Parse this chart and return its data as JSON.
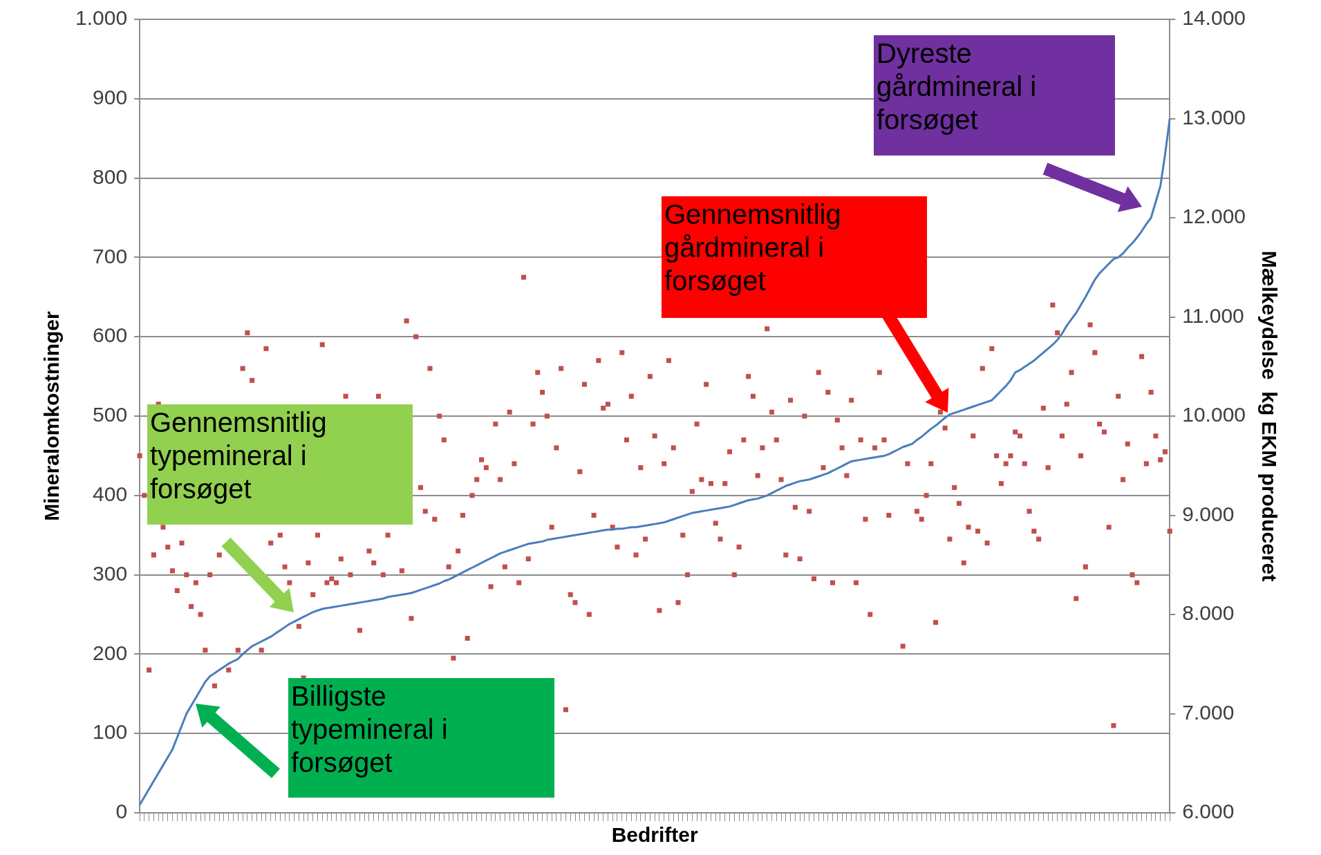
{
  "chart_data": {
    "type": "line",
    "xlabel": "Bedrifter",
    "ylabel": "Mineralomkostninger",
    "y2label": "Mælkeydelse  kg EKM produceret",
    "categories": [
      null,
      null,
      null,
      null,
      null,
      null,
      null,
      null,
      null,
      null,
      null,
      null,
      null,
      null,
      null,
      null,
      null,
      null,
      null,
      null,
      null,
      null,
      null,
      null,
      null,
      null,
      null,
      null,
      null,
      null,
      null,
      null,
      null,
      null,
      null,
      null,
      null,
      null,
      null,
      null,
      null,
      null,
      null,
      null,
      null,
      null,
      null,
      null,
      null,
      null,
      null,
      null,
      null,
      null,
      null,
      null,
      null,
      null,
      null,
      null,
      null,
      null,
      null,
      null,
      null,
      null,
      null,
      null,
      null,
      null,
      null,
      null,
      null,
      null,
      null,
      null,
      null,
      null,
      null,
      null,
      null,
      null,
      null,
      null,
      null,
      null,
      null,
      null,
      null,
      null,
      null,
      null,
      null,
      null,
      null,
      null,
      null,
      null,
      null,
      null,
      null,
      null,
      null,
      null,
      null,
      null,
      null,
      null,
      null,
      null,
      null,
      null,
      null,
      null,
      null,
      null,
      null,
      null,
      null,
      null,
      null,
      null,
      null,
      null,
      null,
      null,
      null,
      null,
      null,
      null,
      null,
      null,
      null,
      null,
      null,
      null,
      null,
      null,
      null,
      null,
      null,
      null,
      null,
      null,
      null,
      null,
      null,
      null,
      null,
      null,
      null,
      null,
      null,
      null,
      null,
      null,
      null,
      null,
      null,
      null,
      null,
      null,
      null,
      null,
      null,
      null,
      null,
      null,
      null,
      null,
      null,
      null,
      null,
      null,
      null,
      null,
      null,
      null,
      null,
      null,
      null,
      null,
      null,
      null,
      null,
      null,
      null,
      null,
      null,
      null,
      null,
      null,
      null,
      null,
      null,
      null,
      null,
      null,
      null,
      null,
      null,
      null,
      null,
      null,
      null,
      null,
      null,
      null,
      null,
      null,
      null,
      null,
      null,
      null,
      null,
      null,
      null,
      null,
      null,
      null,
      null
    ],
    "series": [
      {
        "type": "line",
        "color": "#4a7ebb",
        "marker": "none",
        "values": [
          10,
          20,
          30,
          40,
          50,
          60,
          70,
          80,
          95,
          110,
          125,
          135,
          145,
          155,
          165,
          172,
          176,
          180,
          184,
          188,
          191,
          194,
          200,
          205,
          210,
          213,
          216,
          219,
          222,
          226,
          230,
          234,
          238,
          241,
          244,
          247,
          250,
          253,
          255,
          257,
          258,
          259,
          260,
          261,
          262,
          263,
          264,
          265,
          266,
          267,
          268,
          269,
          270,
          272,
          273,
          274,
          275,
          276,
          277,
          279,
          281,
          283,
          285,
          287,
          289,
          292,
          294,
          297,
          300,
          303,
          306,
          309,
          312,
          315,
          318,
          321,
          324,
          327,
          329,
          331,
          333,
          335,
          337,
          339,
          340,
          341,
          342,
          344,
          345,
          346,
          347,
          348,
          349,
          350,
          351,
          352,
          353,
          354,
          355,
          356,
          357,
          357,
          358,
          358,
          359,
          360,
          360,
          361,
          362,
          363,
          364,
          365,
          366,
          368,
          370,
          372,
          374,
          376,
          378,
          379,
          380,
          381,
          382,
          383,
          384,
          385,
          386,
          388,
          390,
          392,
          394,
          395,
          396,
          398,
          400,
          403,
          406,
          409,
          412,
          414,
          416,
          418,
          419,
          420,
          422,
          424,
          426,
          428,
          431,
          434,
          437,
          440,
          443,
          444,
          445,
          446,
          447,
          448,
          449,
          450,
          452,
          455,
          458,
          461,
          463,
          465,
          470,
          474,
          479,
          484,
          488,
          493,
          498,
          502,
          504,
          506,
          508,
          510,
          512,
          514,
          516,
          518,
          520,
          526,
          532,
          538,
          545,
          555,
          558,
          562,
          566,
          570,
          575,
          580,
          585,
          590,
          596,
          604,
          614,
          622,
          630,
          640,
          650,
          661,
          672,
          680,
          686,
          692,
          698,
          700,
          705,
          712,
          718,
          725,
          733,
          742,
          750,
          770,
          790,
          830,
          875
        ]
      },
      {
        "type": "scatter",
        "axis": "y2",
        "color": "#c0504d",
        "marker": "square",
        "values": [
          9600,
          9200,
          7440,
          8600,
          10120,
          8880,
          8680,
          8440,
          8240,
          8720,
          8400,
          8080,
          8320,
          8000,
          7640,
          8400,
          7280,
          8600,
          null,
          7440,
          null,
          7640,
          10480,
          10840,
          10360,
          null,
          7640,
          10680,
          8720,
          null,
          8800,
          8480,
          8320,
          null,
          7880,
          7360,
          8520,
          8200,
          8800,
          10720,
          8320,
          8360,
          8320,
          8560,
          10200,
          8400,
          null,
          7840,
          null,
          8640,
          8520,
          10200,
          8400,
          8800,
          null,
          null,
          8440,
          10960,
          7960,
          10800,
          9280,
          9040,
          10480,
          8960,
          10000,
          9760,
          8480,
          7560,
          8640,
          9000,
          7760,
          9200,
          9360,
          9560,
          9480,
          8280,
          9920,
          9360,
          8480,
          10040,
          9520,
          8320,
          11400,
          8560,
          9920,
          10440,
          10240,
          10000,
          8880,
          9680,
          10480,
          7040,
          8200,
          8120,
          9440,
          10320,
          8000,
          9000,
          10560,
          10080,
          10120,
          8880,
          8680,
          10640,
          9760,
          10200,
          8600,
          9480,
          8760,
          10400,
          9800,
          8040,
          9520,
          10560,
          9680,
          8120,
          8800,
          8400,
          9240,
          9920,
          9360,
          10320,
          9320,
          8920,
          8760,
          9320,
          9640,
          8400,
          8680,
          9760,
          10400,
          10200,
          9400,
          9680,
          10880,
          10040,
          9760,
          9360,
          8600,
          10160,
          9080,
          8560,
          10000,
          9040,
          8360,
          10440,
          9480,
          10240,
          8320,
          9960,
          9680,
          9400,
          10160,
          8320,
          9760,
          8960,
          8000,
          9680,
          10440,
          9760,
          9000,
          null,
          null,
          7680,
          9520,
          null,
          9040,
          8960,
          9200,
          9520,
          7920,
          10040,
          9880,
          8760,
          9280,
          9120,
          8520,
          8880,
          9800,
          8840,
          10480,
          8720,
          10680,
          9600,
          9320,
          9520,
          9600,
          9840,
          9800,
          9520,
          9040,
          8840,
          8760,
          10080,
          9480,
          11120,
          10840,
          9800,
          10120,
          10440,
          8160,
          9600,
          8480,
          10920,
          10640,
          9920,
          9840,
          8880,
          6880,
          10200,
          9360,
          9720,
          8400,
          8320,
          10600,
          9520,
          10240,
          9800,
          9560,
          9640,
          8840
        ]
      }
    ],
    "ylim": [
      0,
      1000
    ],
    "yticks": [
      0,
      100,
      200,
      300,
      400,
      500,
      600,
      700,
      800,
      900,
      {
        "value": 1000,
        "label": "1.000"
      }
    ],
    "y2lim": [
      6000,
      14000
    ],
    "y2ticks": [
      {
        "value": 6000,
        "label": "6.000"
      },
      {
        "value": 7000,
        "label": "7.000"
      },
      {
        "value": 8000,
        "label": "8.000"
      },
      {
        "value": 9000,
        "label": "9.000"
      },
      {
        "value": 10000,
        "label": "10.000"
      },
      {
        "value": 11000,
        "label": "11.000"
      },
      {
        "value": 12000,
        "label": "12.000"
      },
      {
        "value": 13000,
        "label": "13.000"
      },
      {
        "value": 14000,
        "label": "14.000"
      }
    ],
    "grid": "y",
    "legend": false,
    "tick_labels": "y",
    "annotations": [
      "Dyreste gårdmineral i forsøget",
      "Gennemsnitlig gårdmineral i forsøget",
      "Gennemsnitlig typemineral i forsøget",
      "Billigste typemineral i forsøget"
    ]
  }
}
